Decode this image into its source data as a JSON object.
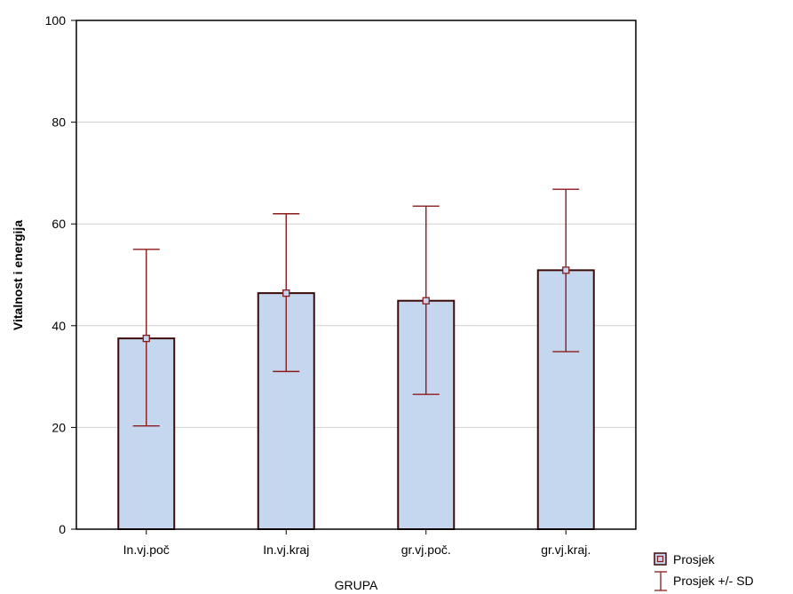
{
  "chart_data": {
    "type": "bar",
    "categories": [
      "In.vj.poč",
      "In.vj.kraj",
      "gr.vj.poč.",
      "gr.vj.kraj."
    ],
    "mean": [
      37.5,
      46.4,
      44.9,
      50.9
    ],
    "sd_lower": [
      20.3,
      31.0,
      26.5,
      34.9
    ],
    "sd_upper": [
      55.0,
      62.0,
      63.5,
      66.8
    ],
    "xlabel": "GRUPA",
    "ylabel": "Vitalnost i energija",
    "ylim": [
      0,
      100
    ],
    "yticks": [
      0,
      20,
      40,
      60,
      80,
      100
    ],
    "grid": true,
    "legend": {
      "position": "bottom-right",
      "mean_label": "Prosjek",
      "sd_label": "Prosjek +/- SD"
    },
    "colors": {
      "bar_fill": "#c5d7ef",
      "bar_stroke": "#3d0a0a",
      "error": "#8b1a1a",
      "grid": "#d0d0d0"
    }
  }
}
